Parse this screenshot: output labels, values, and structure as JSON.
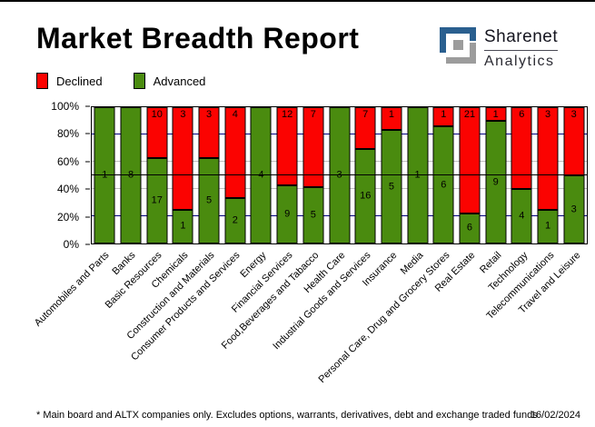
{
  "header": {
    "title": "Market Breadth Report",
    "logo": {
      "line1": "Sharenet",
      "line2": "Analytics"
    }
  },
  "legend": [
    {
      "label": "Declined",
      "color": "#FB0301"
    },
    {
      "label": "Advanced",
      "color": "#4A8B0F"
    }
  ],
  "chart_data": {
    "type": "bar",
    "stacked": true,
    "stacking": "percent",
    "title": "Market Breadth Report",
    "categories": [
      "Automobiles and Parts",
      "Banks",
      "Basic Resources",
      "Chemicals",
      "Construction and Materials",
      "Consumer Products and Services",
      "Energy",
      "Financial Services",
      "Food,Beverages and Tabacco",
      "Health Care",
      "Industrial Goods and Services",
      "Insurance",
      "Media",
      "Personal Care, Drug and Grocery Stores",
      "Real Estate",
      "Retail",
      "Technology",
      "Telecommunications",
      "Travel and Leisure"
    ],
    "series": [
      {
        "name": "Declined",
        "color": "#FB0301",
        "values": [
          0,
          0,
          10,
          3,
          3,
          4,
          0,
          12,
          7,
          0,
          7,
          1,
          0,
          1,
          21,
          1,
          6,
          3,
          3
        ]
      },
      {
        "name": "Advanced",
        "color": "#4A8B0F",
        "values": [
          1,
          8,
          17,
          1,
          5,
          2,
          4,
          9,
          5,
          3,
          16,
          5,
          1,
          6,
          6,
          9,
          4,
          1,
          3
        ]
      }
    ],
    "ylim": [
      0,
      100
    ],
    "y_ticks": [
      "100%",
      "80%",
      "60%",
      "40%",
      "20%",
      "0%"
    ],
    "gridlines": [
      {
        "pct": 20,
        "color": "#000080"
      },
      {
        "pct": 40,
        "color": "#C0C0C0"
      },
      {
        "pct": 60,
        "color": "#C0C0C0"
      },
      {
        "pct": 80,
        "color": "#000080"
      }
    ],
    "reference_line_pct": 50,
    "legend_position": "top-left",
    "grid": true
  },
  "footer": {
    "note": "* Main board and ALTX companies only. Excludes options, warrants, derivatives, debt and exchange traded funds",
    "date": "16/02/2024"
  }
}
